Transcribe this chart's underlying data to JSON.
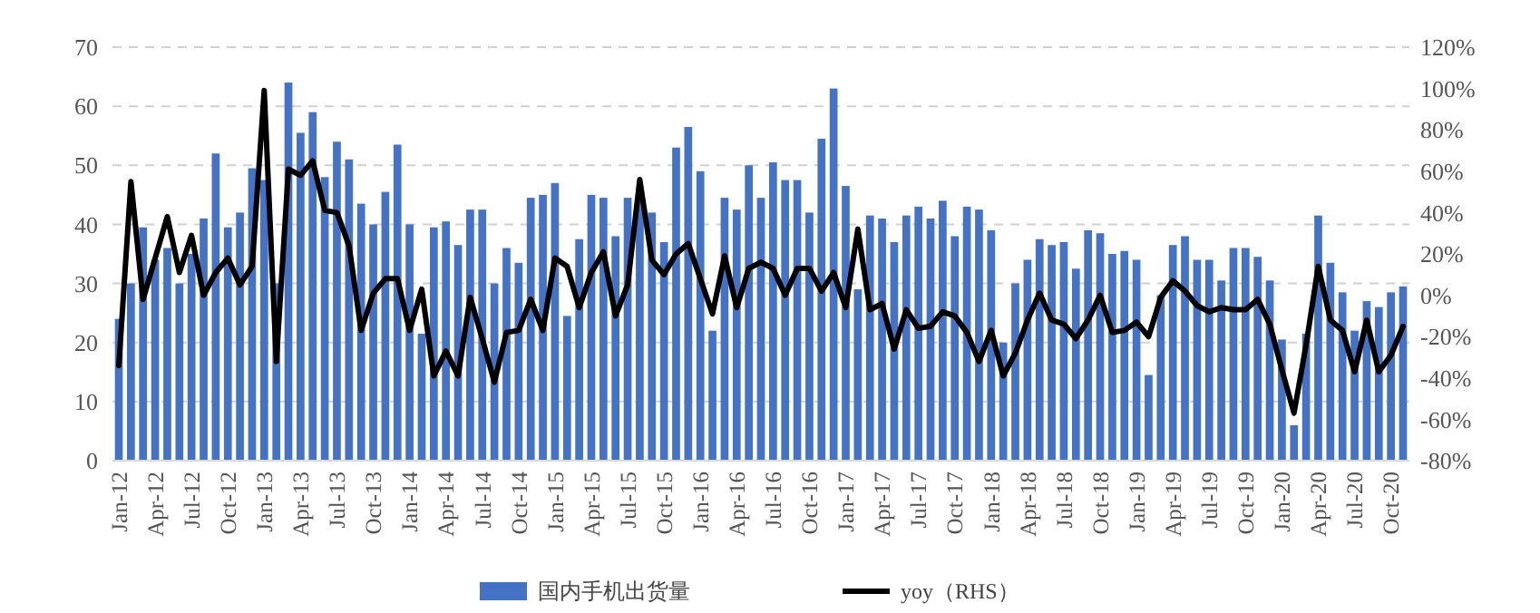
{
  "chart_data": {
    "type": "bar",
    "categories": [
      "Jan-12",
      null,
      null,
      "Apr-12",
      null,
      null,
      "Jul-12",
      null,
      null,
      "Oct-12",
      null,
      null,
      "Jan-13",
      null,
      null,
      "Apr-13",
      null,
      null,
      "Jul-13",
      null,
      null,
      "Oct-13",
      null,
      null,
      "Jan-14",
      null,
      null,
      "Apr-14",
      null,
      null,
      "Jul-14",
      null,
      null,
      "Oct-14",
      null,
      null,
      "Jan-15",
      null,
      null,
      "Apr-15",
      null,
      null,
      "Jul-15",
      null,
      null,
      "Oct-15",
      null,
      null,
      "Jan-16",
      null,
      null,
      "Apr-16",
      null,
      null,
      "Jul-16",
      null,
      null,
      "Oct-16",
      null,
      null,
      "Jan-17",
      null,
      null,
      "Apr-17",
      null,
      null,
      "Jul-17",
      null,
      null,
      "Oct-17",
      null,
      null,
      "Jan-18",
      null,
      null,
      "Apr-18",
      null,
      null,
      "Jul-18",
      null,
      null,
      "Oct-18",
      null,
      null,
      "Jan-19",
      null,
      null,
      "Apr-19",
      null,
      null,
      "Jul-19",
      null,
      null,
      "Oct-19",
      null,
      null,
      "Jan-20",
      null,
      null,
      "Apr-20",
      null,
      null,
      "Jul-20",
      null,
      null,
      "Oct-20",
      null
    ],
    "series": [
      {
        "name": "国内手机出货量",
        "color": "#4472c4",
        "values": [
          24,
          30,
          39.5,
          34,
          36,
          30,
          35,
          41,
          52,
          39.5,
          42,
          49.5,
          47.5,
          30,
          64,
          55.5,
          59,
          48,
          54,
          51,
          43.5,
          40,
          45.5,
          53.5,
          40,
          21.5,
          39.5,
          40.5,
          36.5,
          42.5,
          42.5,
          30,
          36,
          33.5,
          44.5,
          45,
          47,
          24.5,
          37.5,
          45,
          44.5,
          38,
          44.5,
          45,
          42,
          37,
          53,
          56.5,
          49,
          22,
          44.5,
          42.5,
          50,
          44.5,
          50.5,
          47.5,
          47.5,
          42,
          54.5,
          63,
          46.5,
          29,
          41.5,
          41,
          37,
          41.5,
          43,
          41,
          44,
          38,
          43,
          42.5,
          39,
          20,
          30,
          34,
          37.5,
          36.5,
          37,
          32.5,
          39,
          38.5,
          35,
          35.5,
          34,
          14.5,
          28,
          36.5,
          38,
          34,
          34,
          30.5,
          36,
          36,
          34.5,
          30.5,
          20.5,
          6,
          21.5,
          41.5,
          33.5,
          28.5,
          22,
          27,
          26,
          28.5,
          29.5
        ]
      },
      {
        "name": "yoy（RHS）",
        "type": "line",
        "axis": "y2",
        "color": "#000000",
        "values": [
          -34,
          55,
          -2,
          18,
          38,
          11,
          29,
          0,
          11,
          18,
          5,
          14,
          99,
          -32,
          61,
          58,
          65,
          41,
          40,
          24,
          -17,
          1,
          8,
          8,
          -17,
          3,
          -39,
          -27,
          -39,
          -1,
          -21,
          -42,
          -18,
          -17,
          -2,
          -17,
          18,
          14,
          -6,
          11,
          21,
          -10,
          5,
          56,
          17,
          10,
          20,
          25,
          8,
          -9,
          19,
          -6,
          13,
          16,
          13,
          0,
          13,
          13,
          2,
          11,
          -6,
          32,
          -7,
          -4,
          -26,
          -7,
          -16,
          -15,
          -8,
          -10,
          -18,
          -32,
          -17,
          -39,
          -28,
          -12,
          1,
          -12,
          -14,
          -21,
          -12,
          0,
          -18,
          -17,
          -13,
          -20,
          -1,
          7,
          2,
          -5,
          -8,
          -6,
          -7,
          -7,
          -2,
          -14,
          -36,
          -57,
          -24,
          14,
          -12,
          -17,
          -37,
          -12,
          -37,
          -29,
          -15
        ]
      }
    ],
    "ylim": [
      0,
      70
    ],
    "yticks": [
      0,
      10,
      20,
      30,
      40,
      50,
      60,
      70
    ],
    "y2lim": [
      -80,
      120
    ],
    "y2ticks": [
      {
        "value": -80,
        "label": "-80%"
      },
      {
        "value": -60,
        "label": "-60%"
      },
      {
        "value": -40,
        "label": "-40%"
      },
      {
        "value": -20,
        "label": "-20%"
      },
      {
        "value": 0,
        "label": "0%"
      },
      {
        "value": 20,
        "label": "20%"
      },
      {
        "value": 40,
        "label": "40%"
      },
      {
        "value": 60,
        "label": "60%"
      },
      {
        "value": 80,
        "label": "80%"
      },
      {
        "value": 100,
        "label": "100%"
      },
      {
        "value": 120,
        "label": "120%"
      }
    ],
    "grid": "y",
    "legend": "bottom",
    "marker": "none",
    "line_style": "solid"
  }
}
